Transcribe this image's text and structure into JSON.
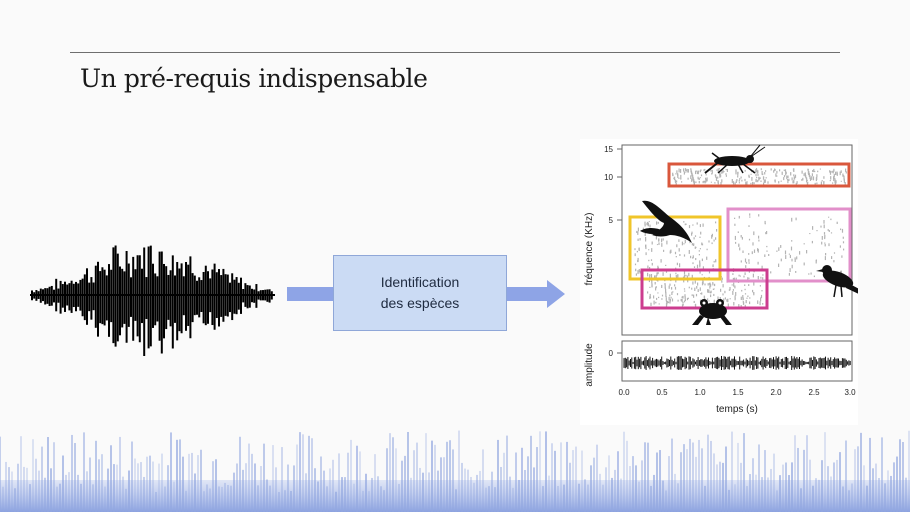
{
  "slide": {
    "title": "Un pré-requis indispensable"
  },
  "process_box": {
    "line1": "Identification",
    "line2": "des espèces"
  },
  "spectrogram": {
    "y_label_top": "fréquence (KHz)",
    "y_label_bottom": "amplitude",
    "x_label": "temps (s)",
    "freq_ticks": [
      "15",
      "10",
      "5"
    ],
    "amp_ticks": [
      "0"
    ],
    "time_ticks": [
      "0.0",
      "0.5",
      "1.0",
      "1.5",
      "2.0",
      "2.5",
      "3.0"
    ],
    "boxes": [
      {
        "name": "insect",
        "color": "#d9573c"
      },
      {
        "name": "bird-1",
        "color": "#f0c52a"
      },
      {
        "name": "bird-2",
        "color": "#e28fca"
      },
      {
        "name": "frog",
        "color": "#cc3d8f"
      }
    ]
  },
  "colors": {
    "arrow": "#8ea4e6",
    "box_fill": "#cbdbf4",
    "ground_lines": "#93a8e0"
  }
}
